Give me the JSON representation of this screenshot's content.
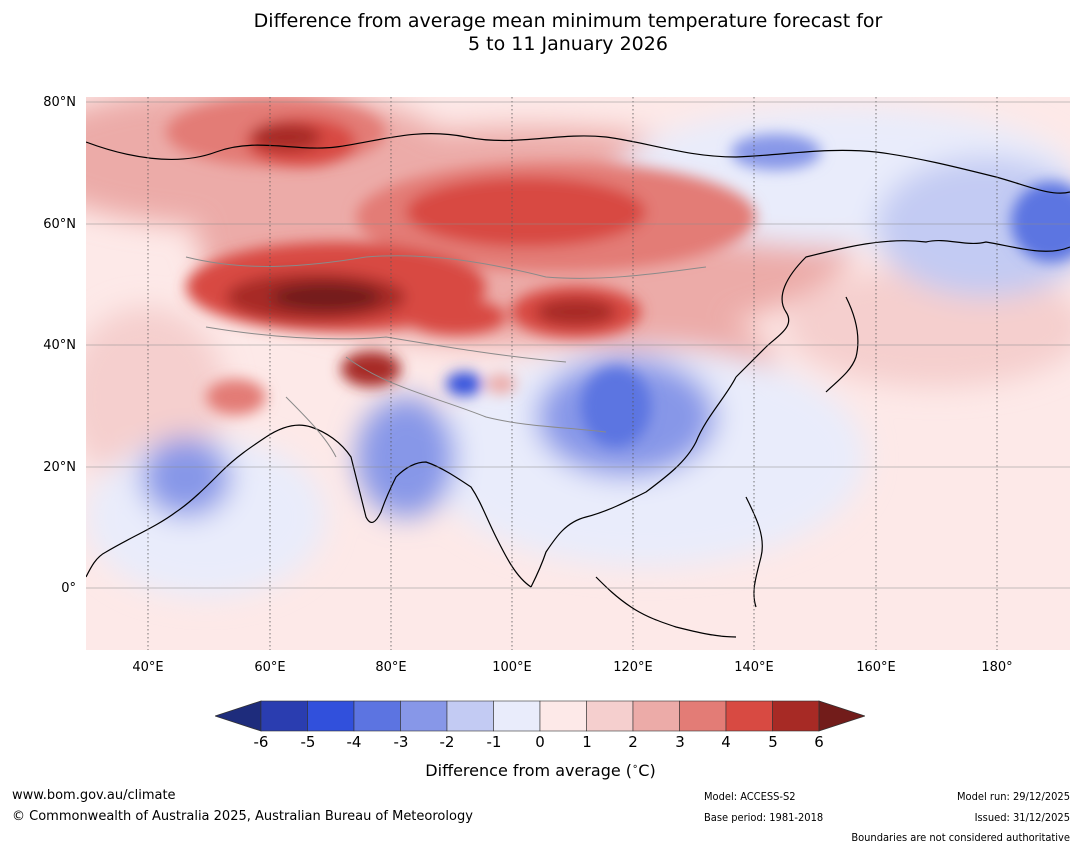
{
  "title": {
    "line1": "Difference from average mean minimum temperature forecast for",
    "line2": "5 to 11 January 2026"
  },
  "map": {
    "latitude_labels": [
      "80°N",
      "60°N",
      "40°N",
      "20°N",
      "0°"
    ],
    "longitude_labels": [
      "40°E",
      "60°E",
      "80°E",
      "100°E",
      "120°E",
      "140°E",
      "160°E",
      "180°"
    ]
  },
  "colorbar": {
    "ticks": [
      "-6",
      "-5",
      "-4",
      "-3",
      "-2",
      "-1",
      "0",
      "1",
      "2",
      "3",
      "4",
      "5",
      "6"
    ],
    "colors": [
      "#1e2c7c",
      "#2a3db0",
      "#3150dc",
      "#5c74e1",
      "#8797e8",
      "#c3cbf3",
      "#e9ecfb",
      "#fde9e8",
      "#f5cfce",
      "#ecaba8",
      "#e37c76",
      "#d84a42",
      "#a72a25",
      "#721c1a"
    ],
    "label_prefix": "Difference from average (",
    "label_degree": "∘",
    "label_suffix": "C)"
  },
  "footer": {
    "website": "www.bom.gov.au/climate",
    "copyright": "© Commonwealth of Australia 2025, Australian Bureau of Meteorology",
    "model": "Model: ACCESS-S2",
    "base_period": "Base period: 1981-2018",
    "model_run": "Model run: 29/12/2025",
    "issued": "Issued: 31/12/2025",
    "disclaimer": "Boundaries are not considered authoritative"
  }
}
